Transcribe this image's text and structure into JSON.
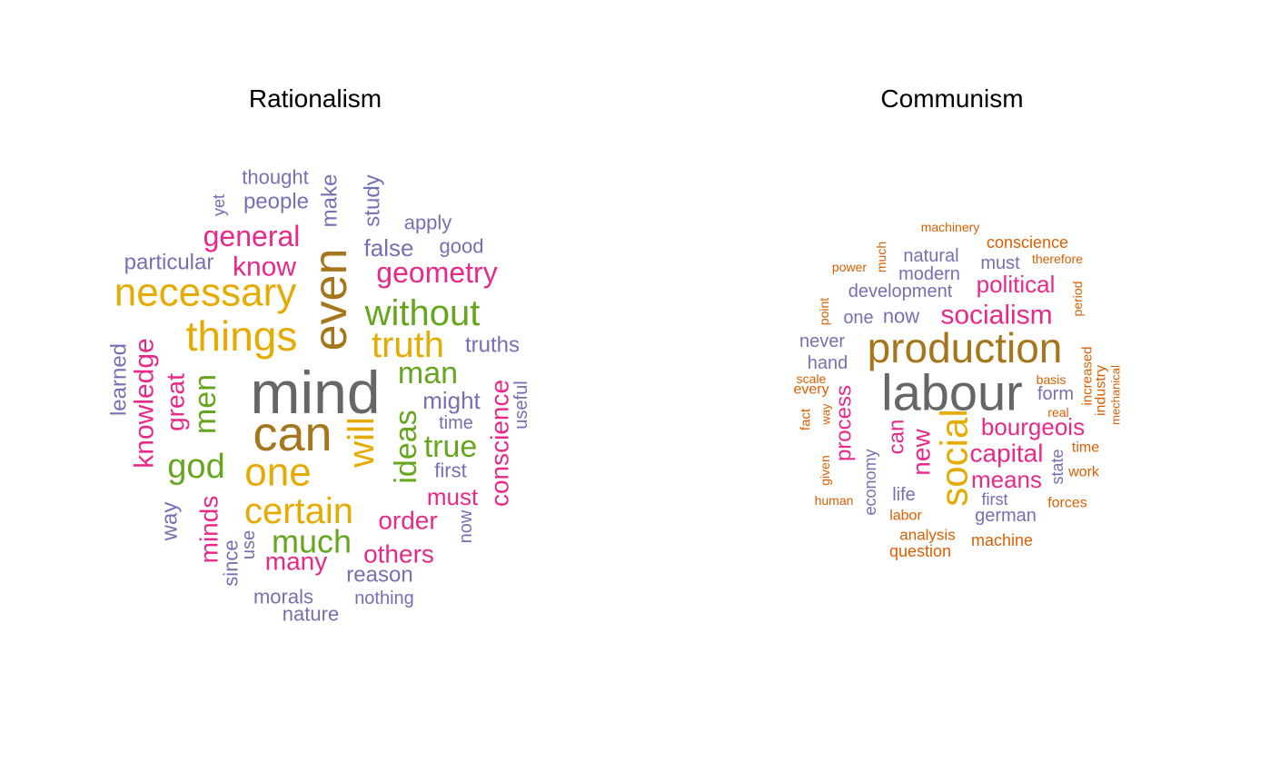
{
  "colors": {
    "gray": "#666666",
    "brown": "#A6761D",
    "gold": "#E6AB02",
    "green": "#66A61E",
    "magenta": "#E7298A",
    "purple": "#7570B3",
    "orange": "#D95F02"
  },
  "chart_data": [
    {
      "type": "wordcloud",
      "title": "Rationalism",
      "words": [
        {
          "text": "mind",
          "color": "gray"
        },
        {
          "text": "can",
          "color": "brown"
        },
        {
          "text": "even",
          "color": "brown"
        },
        {
          "text": "necessary",
          "color": "gold"
        },
        {
          "text": "things",
          "color": "gold"
        },
        {
          "text": "one",
          "color": "gold"
        },
        {
          "text": "certain",
          "color": "gold"
        },
        {
          "text": "truth",
          "color": "gold"
        },
        {
          "text": "will",
          "color": "gold"
        },
        {
          "text": "without",
          "color": "green"
        },
        {
          "text": "man",
          "color": "green"
        },
        {
          "text": "true",
          "color": "green"
        },
        {
          "text": "ideas",
          "color": "green"
        },
        {
          "text": "god",
          "color": "green"
        },
        {
          "text": "much",
          "color": "green"
        },
        {
          "text": "men",
          "color": "green"
        },
        {
          "text": "geometry",
          "color": "magenta"
        },
        {
          "text": "general",
          "color": "magenta"
        },
        {
          "text": "know",
          "color": "magenta"
        },
        {
          "text": "knowledge",
          "color": "magenta"
        },
        {
          "text": "great",
          "color": "magenta"
        },
        {
          "text": "minds",
          "color": "magenta"
        },
        {
          "text": "conscience",
          "color": "magenta"
        },
        {
          "text": "must",
          "color": "magenta"
        },
        {
          "text": "order",
          "color": "magenta"
        },
        {
          "text": "others",
          "color": "magenta"
        },
        {
          "text": "many",
          "color": "magenta"
        },
        {
          "text": "thought",
          "color": "purple"
        },
        {
          "text": "people",
          "color": "purple"
        },
        {
          "text": "yet",
          "color": "purple"
        },
        {
          "text": "make",
          "color": "purple"
        },
        {
          "text": "study",
          "color": "purple"
        },
        {
          "text": "apply",
          "color": "purple"
        },
        {
          "text": "false",
          "color": "purple"
        },
        {
          "text": "good",
          "color": "purple"
        },
        {
          "text": "particular",
          "color": "purple"
        },
        {
          "text": "truths",
          "color": "purple"
        },
        {
          "text": "learned",
          "color": "purple"
        },
        {
          "text": "might",
          "color": "purple"
        },
        {
          "text": "time",
          "color": "purple"
        },
        {
          "text": "useful",
          "color": "purple"
        },
        {
          "text": "first",
          "color": "purple"
        },
        {
          "text": "way",
          "color": "purple"
        },
        {
          "text": "now",
          "color": "purple"
        },
        {
          "text": "since",
          "color": "purple"
        },
        {
          "text": "use",
          "color": "purple"
        },
        {
          "text": "reason",
          "color": "purple"
        },
        {
          "text": "morals",
          "color": "purple"
        },
        {
          "text": "nothing",
          "color": "purple"
        },
        {
          "text": "nature",
          "color": "purple"
        }
      ]
    },
    {
      "type": "wordcloud",
      "title": "Communism",
      "words": [
        {
          "text": "labour",
          "color": "gray"
        },
        {
          "text": "production",
          "color": "brown"
        },
        {
          "text": "social",
          "color": "gold"
        },
        {
          "text": "socialism",
          "color": "magenta"
        },
        {
          "text": "political",
          "color": "magenta"
        },
        {
          "text": "bourgeois",
          "color": "magenta"
        },
        {
          "text": "capital",
          "color": "magenta"
        },
        {
          "text": "means",
          "color": "magenta"
        },
        {
          "text": "process",
          "color": "magenta"
        },
        {
          "text": "can",
          "color": "magenta"
        },
        {
          "text": "new",
          "color": "magenta"
        },
        {
          "text": "natural",
          "color": "purple"
        },
        {
          "text": "modern",
          "color": "purple"
        },
        {
          "text": "must",
          "color": "purple"
        },
        {
          "text": "development",
          "color": "purple"
        },
        {
          "text": "one",
          "color": "purple"
        },
        {
          "text": "now",
          "color": "purple"
        },
        {
          "text": "never",
          "color": "purple"
        },
        {
          "text": "hand",
          "color": "purple"
        },
        {
          "text": "form",
          "color": "purple"
        },
        {
          "text": "economy",
          "color": "purple"
        },
        {
          "text": "life",
          "color": "purple"
        },
        {
          "text": "first",
          "color": "purple"
        },
        {
          "text": "german",
          "color": "purple"
        },
        {
          "text": "state",
          "color": "purple"
        },
        {
          "text": "machinery",
          "color": "orange"
        },
        {
          "text": "conscience",
          "color": "orange"
        },
        {
          "text": "much",
          "color": "orange"
        },
        {
          "text": "power",
          "color": "orange"
        },
        {
          "text": "therefore",
          "color": "orange"
        },
        {
          "text": "point",
          "color": "orange"
        },
        {
          "text": "period",
          "color": "orange"
        },
        {
          "text": "scale",
          "color": "orange"
        },
        {
          "text": "every",
          "color": "orange"
        },
        {
          "text": "basis",
          "color": "orange"
        },
        {
          "text": "increased",
          "color": "orange"
        },
        {
          "text": "industry",
          "color": "orange"
        },
        {
          "text": "mechanical",
          "color": "orange"
        },
        {
          "text": "real",
          "color": "orange"
        },
        {
          "text": "fact",
          "color": "orange"
        },
        {
          "text": "way",
          "color": "orange"
        },
        {
          "text": "time",
          "color": "orange"
        },
        {
          "text": "given",
          "color": "orange"
        },
        {
          "text": "work",
          "color": "orange"
        },
        {
          "text": "human",
          "color": "orange"
        },
        {
          "text": "forces",
          "color": "orange"
        },
        {
          "text": "labor",
          "color": "orange"
        },
        {
          "text": "analysis",
          "color": "orange"
        },
        {
          "text": "machine",
          "color": "orange"
        },
        {
          "text": "question",
          "color": "orange"
        }
      ]
    }
  ]
}
